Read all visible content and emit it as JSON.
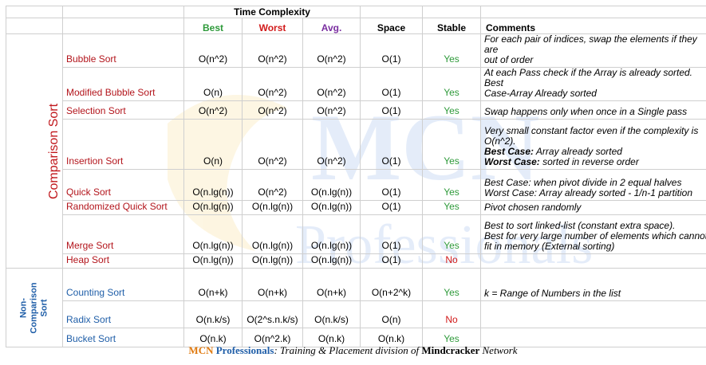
{
  "header": {
    "time_complexity": "Time Complexity",
    "best": "Best",
    "worst": "Worst",
    "avg": "Avg.",
    "space": "Space",
    "stable": "Stable",
    "comments": "Comments"
  },
  "categories": {
    "comparison": "Comparison Sort",
    "non_comparison_lines": [
      "Non-",
      "Comparison",
      "Sort"
    ]
  },
  "rows": [
    {
      "name": "Bubble Sort",
      "best": "O(n^2)",
      "worst": "O(n^2)",
      "avg": "O(n^2)",
      "space": "O(1)",
      "stable": "Yes",
      "comment": [
        "For each pair of indices, swap the elements if they are",
        "out of order"
      ]
    },
    {
      "name": "Modified Bubble Sort",
      "best": "O(n)",
      "worst": "O(n^2)",
      "avg": "O(n^2)",
      "space": "O(1)",
      "stable": "Yes",
      "comment": [
        "At each Pass check if the Array is already sorted. Best",
        "Case-Array Already sorted"
      ]
    },
    {
      "name": "Selection Sort",
      "best": "O(n^2)",
      "worst": "O(n^2)",
      "avg": "O(n^2)",
      "space": "O(1)",
      "stable": "Yes",
      "comment": [
        "Swap happens only when once in a Single pass"
      ]
    },
    {
      "name": "Insertion Sort",
      "best": "O(n)",
      "worst": "O(n^2)",
      "avg": "O(n^2)",
      "space": "O(1)",
      "stable": "Yes",
      "comment_lines": [
        "Very small constant factor even if the complexity is",
        "O(n^2)."
      ],
      "best_label": "Best Case:",
      "best_text": " Array already sorted",
      "worst_label": "Worst Case:",
      "worst_text": " sorted in reverse order"
    },
    {
      "name": "Quick Sort",
      "best": "O(n.lg(n))",
      "worst": "O(n^2)",
      "avg": "O(n.lg(n))",
      "space": "O(1)",
      "stable": "Yes",
      "comment": [
        "Best Case: when pivot divide in 2 equal halves",
        "Worst Case: Array already sorted - 1/n-1 partition"
      ]
    },
    {
      "name": "Randomized Quick Sort",
      "best": "O(n.lg(n))",
      "worst": "O(n.lg(n))",
      "avg": "O(n.lg(n))",
      "space": "O(1)",
      "stable": "Yes",
      "comment": [
        "Pivot chosen randomly"
      ]
    },
    {
      "name": "Merge Sort",
      "best": "O(n.lg(n))",
      "worst": "O(n.lg(n))",
      "avg": "O(n.lg(n))",
      "space": "O(1)",
      "stable": "Yes",
      "comment": [
        "Best to sort linked-list (constant extra space).",
        "Best for very large number of elements which cannot",
        "fit in memory (External sorting)"
      ]
    },
    {
      "name": "Heap Sort",
      "best": "O(n.lg(n))",
      "worst": "O(n.lg(n))",
      "avg": "O(n.lg(n))",
      "space": "O(1)",
      "stable": "No",
      "comment": []
    },
    {
      "name": "Counting Sort",
      "best": "O(n+k)",
      "worst": "O(n+k)",
      "avg": "O(n+k)",
      "space": "O(n+2^k)",
      "stable": "Yes",
      "comment": [
        "k = Range of Numbers in the list"
      ]
    },
    {
      "name": "Radix Sort",
      "best": "O(n.k/s)",
      "worst": "O(2^s.n.k/s)",
      "avg": "O(n.k/s)",
      "space": "O(n)",
      "stable": "No",
      "comment": []
    },
    {
      "name": "Bucket Sort",
      "best": "O(n.k)",
      "worst": "O(n^2.k)",
      "avg": "O(n.k)",
      "space": "O(n.k)",
      "stable": "Yes",
      "comment": []
    }
  ],
  "watermark": {
    "line1": "MCN",
    "line2": "Professionals"
  },
  "footer": {
    "mcn": "MCN",
    "professionals": "Professionals",
    "middle": ": Training & Placement division of ",
    "mindcracker": "Mindcracker",
    "network": " Network"
  },
  "colors": {
    "best": "#2e9a3a",
    "worst": "#d11a1a",
    "avg": "#7a2ea0",
    "comparison": "#c0161b",
    "non_comparison": "#1f5ea8"
  }
}
